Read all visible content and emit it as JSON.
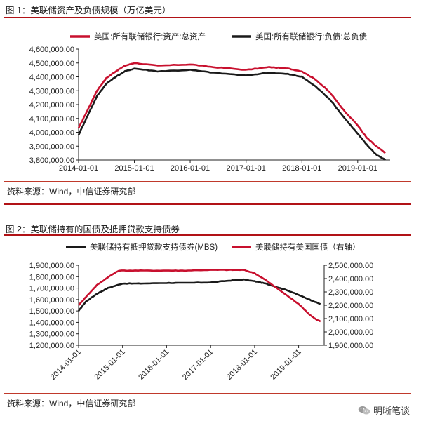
{
  "fig1": {
    "title": "图 1：美联储资产及负债规模（万亿美元）",
    "source": "资料来源：Wind，中信证券研究部"
  },
  "fig2": {
    "title": "图 2：美联储持有的国债及抵押贷款支持债券",
    "source": "资料来源：Wind，中信证券研究部"
  },
  "watermark": {
    "text": "明晰笔谈",
    "icon": "wechat-icon"
  },
  "colors": {
    "red": "#c8102e",
    "black": "#1a1a1a",
    "rule": "#b11216"
  },
  "chart_data": [
    {
      "type": "line",
      "xlabel": "",
      "ylabel": "",
      "x_ticks": [
        "2014-01-01",
        "2015-01-01",
        "2016-01-01",
        "2017-01-01",
        "2018-01-01",
        "2019-01-01"
      ],
      "y_ticks": [
        "3,800,000.00",
        "3,900,000.00",
        "4,000,000.00",
        "4,100,000.00",
        "4,200,000.00",
        "4,300,000.00",
        "4,400,000.00",
        "4,500,000.00",
        "4,600,000.00"
      ],
      "ylim": [
        3800000,
        4600000
      ],
      "legend_position": "top",
      "grid": false,
      "series": [
        {
          "name": "美国:所有联储银行:资产:总资产",
          "color": "#c8102e",
          "points": [
            [
              "2014-01-01",
              4030000
            ],
            [
              "2014-03-01",
              4160000
            ],
            [
              "2014-05-01",
              4300000
            ],
            [
              "2014-07-01",
              4390000
            ],
            [
              "2014-09-01",
              4440000
            ],
            [
              "2014-11-01",
              4480000
            ],
            [
              "2015-01-01",
              4500000
            ],
            [
              "2015-06-01",
              4480000
            ],
            [
              "2016-01-01",
              4490000
            ],
            [
              "2016-06-01",
              4470000
            ],
            [
              "2017-01-01",
              4450000
            ],
            [
              "2017-06-01",
              4470000
            ],
            [
              "2017-10-01",
              4460000
            ],
            [
              "2018-01-01",
              4440000
            ],
            [
              "2018-04-01",
              4380000
            ],
            [
              "2018-07-01",
              4290000
            ],
            [
              "2018-10-01",
              4160000
            ],
            [
              "2019-01-01",
              4050000
            ],
            [
              "2019-03-01",
              3960000
            ],
            [
              "2019-05-01",
              3900000
            ],
            [
              "2019-07-01",
              3850000
            ]
          ]
        },
        {
          "name": "美国:所有联储银行:负债:总负债",
          "color": "#1a1a1a",
          "points": [
            [
              "2014-01-01",
              3980000
            ],
            [
              "2014-03-01",
              4120000
            ],
            [
              "2014-05-01",
              4260000
            ],
            [
              "2014-07-01",
              4350000
            ],
            [
              "2014-09-01",
              4400000
            ],
            [
              "2014-11-01",
              4440000
            ],
            [
              "2015-01-01",
              4460000
            ],
            [
              "2015-06-01",
              4440000
            ],
            [
              "2016-01-01",
              4450000
            ],
            [
              "2016-06-01",
              4430000
            ],
            [
              "2017-01-01",
              4410000
            ],
            [
              "2017-06-01",
              4430000
            ],
            [
              "2017-10-01",
              4420000
            ],
            [
              "2018-01-01",
              4400000
            ],
            [
              "2018-04-01",
              4330000
            ],
            [
              "2018-07-01",
              4240000
            ],
            [
              "2018-10-01",
              4110000
            ],
            [
              "2019-01-01",
              3990000
            ],
            [
              "2019-03-01",
              3910000
            ],
            [
              "2019-05-01",
              3840000
            ],
            [
              "2019-07-01",
              3800000
            ]
          ]
        }
      ]
    },
    {
      "type": "line",
      "xlabel": "",
      "ylabel": "",
      "x_ticks": [
        "2014-01-01",
        "2015-01-01",
        "2016-01-01",
        "2017-01-01",
        "2018-01-01",
        "2019-01-01"
      ],
      "y_left_ticks": [
        "1,200,000.00",
        "1,300,000.00",
        "1,400,000.00",
        "1,500,000.00",
        "1,600,000.00",
        "1,700,000.00",
        "1,800,000.00",
        "1,900,000.00"
      ],
      "y_left_lim": [
        1200000,
        1900000
      ],
      "y_right_ticks": [
        "1,900,000.00",
        "2,000,000.00",
        "2,100,000.00",
        "2,200,000.00",
        "2,300,000.00",
        "2,400,000.00",
        "2,500,000.00"
      ],
      "y_right_lim": [
        1900000,
        2500000
      ],
      "legend_position": "top",
      "grid": false,
      "series": [
        {
          "name": "美联储持有抵押贷款支持债券(MBS)",
          "color": "#1a1a1a",
          "axis": "left",
          "points": [
            [
              "2014-01-01",
              1500000
            ],
            [
              "2014-03-01",
              1580000
            ],
            [
              "2014-06-01",
              1650000
            ],
            [
              "2014-09-01",
              1700000
            ],
            [
              "2015-01-01",
              1740000
            ],
            [
              "2015-06-01",
              1740000
            ],
            [
              "2016-01-01",
              1745000
            ],
            [
              "2016-06-01",
              1745000
            ],
            [
              "2017-01-01",
              1750000
            ],
            [
              "2017-06-01",
              1765000
            ],
            [
              "2017-10-01",
              1775000
            ],
            [
              "2018-01-01",
              1760000
            ],
            [
              "2018-04-01",
              1740000
            ],
            [
              "2018-07-01",
              1710000
            ],
            [
              "2018-10-01",
              1680000
            ],
            [
              "2019-01-01",
              1640000
            ],
            [
              "2019-04-01",
              1600000
            ],
            [
              "2019-07-01",
              1560000
            ]
          ]
        },
        {
          "name": "美联储持有美国国债（右轴）",
          "color": "#c8102e",
          "axis": "right",
          "points": [
            [
              "2014-01-01",
              2200000
            ],
            [
              "2014-03-01",
              2260000
            ],
            [
              "2014-06-01",
              2350000
            ],
            [
              "2014-09-01",
              2410000
            ],
            [
              "2014-12-01",
              2460000
            ],
            [
              "2015-06-01",
              2460000
            ],
            [
              "2016-01-01",
              2460000
            ],
            [
              "2016-06-01",
              2460000
            ],
            [
              "2017-01-01",
              2465000
            ],
            [
              "2017-06-01",
              2465000
            ],
            [
              "2017-10-01",
              2465000
            ],
            [
              "2018-01-01",
              2440000
            ],
            [
              "2018-04-01",
              2390000
            ],
            [
              "2018-07-01",
              2330000
            ],
            [
              "2018-10-01",
              2270000
            ],
            [
              "2019-01-01",
              2210000
            ],
            [
              "2019-04-01",
              2130000
            ],
            [
              "2019-06-01",
              2090000
            ],
            [
              "2019-07-01",
              2080000
            ]
          ]
        }
      ]
    }
  ]
}
